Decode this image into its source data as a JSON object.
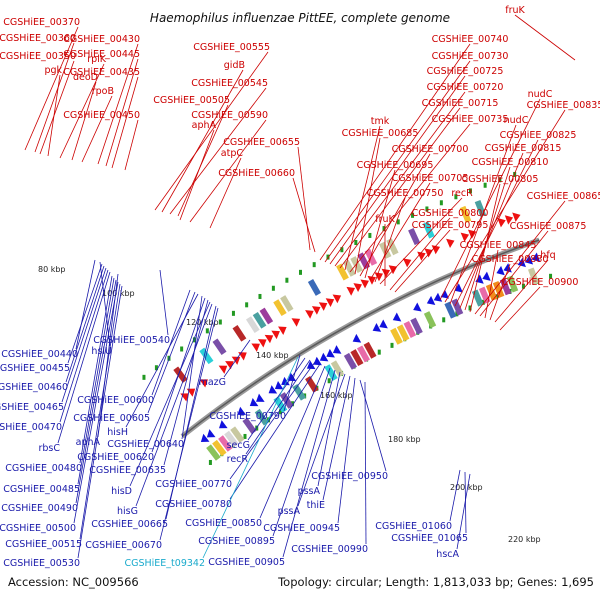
{
  "title": "Haemophilus influenzae PittEE, complete genome",
  "footer": {
    "accession": "Accession: NC_009566",
    "summary": "Topology: circular; Length: 1,813,033 bp; Genes: 1,695"
  },
  "colors": {
    "forward_gene": "#ee1111",
    "reverse_gene": "#1111dd",
    "backbone": "#777777",
    "forward_label": "#cc0000",
    "reverse_label": "#1a1aaa",
    "rna_label": "#1aaacc",
    "tick_marker": "#229922"
  },
  "ticks": [
    "80 kbp",
    "100 kbp",
    "120 kbp",
    "140 kbp",
    "160 kbp",
    "180 kbp",
    "200 kbp",
    "220 kbp"
  ],
  "forward_labels": [
    "fruK",
    "CGSHiEE_00370",
    "CGSHiEE_00360",
    "CGSHiEE_00350",
    "pgk",
    "rplK",
    "deoD",
    "rpoB",
    "CGSHiEE_00430",
    "CGSHiEE_00445",
    "CGSHiEE_00435",
    "CGSHiEE_00450",
    "CGSHiEE_00555",
    "gidB",
    "CGSHiEE_00545",
    "CGSHiEE_00505",
    "aphA",
    "CGSHiEE_00590",
    "atpC",
    "CGSHiEE_00740",
    "CGSHiEE_00730",
    "CGSHiEE_00725",
    "CGSHiEE_00720",
    "CGSHiEE_00715",
    "tmk",
    "CGSHiEE_00735",
    "CGSHiEE_00685",
    "CGSHiEE_00655",
    "CGSHiEE_00700",
    "CGSHiEE_00695",
    "CGSHiEE_00660",
    "CGSHiEE_00705",
    "CGSHiEE_00750",
    "recR",
    "fruK",
    "CGSHiEE_00800",
    "CGSHiEE_00795",
    "nudC",
    "CGSHiEE_00835",
    "nudC",
    "CGSHiEE_00825",
    "CGSHiEE_00815",
    "CGSHiEE_00810",
    "CGSHiEE_00805",
    "CGSHiEE_00865",
    "CGSHiEE_00875",
    "CGSHiEE_00845",
    "CGSHiEE_00880",
    "hfq",
    "CGSHiEE_00900"
  ],
  "reverse_labels": [
    "CGSHiEE_00440",
    "hslU",
    "CGSHiEE_00540",
    "CGSHiEE_00455",
    "CGSHiEE_00460",
    "CGSHiEE_00465",
    "CGSHiEE_00600",
    "CGSHiEE_00470",
    "CGSHiEE_00605",
    "rbsC",
    "aphA",
    "hisH",
    "CGSHiEE_00640",
    "CGSHiEE_00620",
    "CGSHiEE_00480",
    "CGSHiEE_00635",
    "CGSHiEE_00485",
    "hisD",
    "CGSHiEE_00490",
    "hisG",
    "CGSHiEE_00500",
    "CGSHiEE_00665",
    "CGSHiEE_00515",
    "CGSHiEE_00670",
    "CGSHiEE_00530",
    "mazG",
    "CGSHiEE_00790",
    "secG",
    "recR",
    "CGSHiEE_00770",
    "CGSHiEE_00780",
    "CGSHiEE_00850",
    "CGSHiEE_00895",
    "CGSHiEE_00905",
    "pssA",
    "pssA",
    "thiE",
    "CGSHiEE_00945",
    "CGSHiEE_00950",
    "CGSHiEE_00990",
    "CGSHiEE_01060",
    "CGSHiEE_01065",
    "hscA"
  ],
  "rna_labels": [
    "CGSHiEE_t09342"
  ]
}
